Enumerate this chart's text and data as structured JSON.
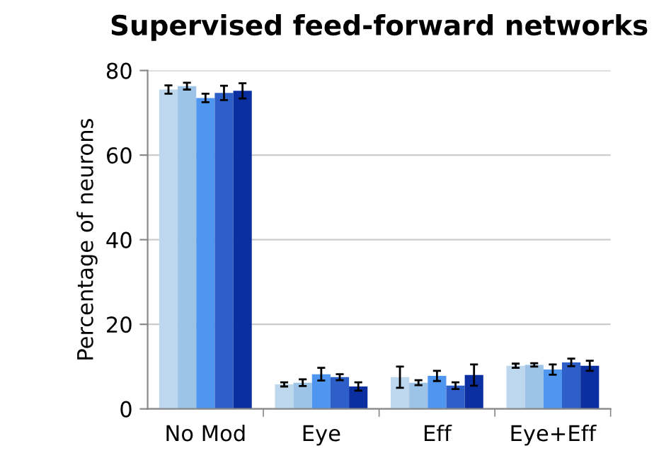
{
  "chart_data": {
    "type": "bar",
    "title": "Supervised feed-forward networks",
    "ylabel": "Percentage of neurons",
    "categories": [
      "No Mod",
      "Eye",
      "Eff",
      "Eye+Eff"
    ],
    "series": [
      {
        "color": "#bdd7ee",
        "values": [
          75.5,
          5.8,
          7.5,
          10.2
        ],
        "errors": [
          1,
          0.5,
          2.5,
          0.5
        ]
      },
      {
        "color": "#9dc3e6",
        "values": [
          76.3,
          6.2,
          6.2,
          10.4
        ],
        "errors": [
          0.8,
          0.8,
          0.6,
          0.4
        ]
      },
      {
        "color": "#4f96f0",
        "values": [
          73.5,
          8.2,
          7.8,
          9.3
        ],
        "errors": [
          1,
          1.5,
          1.2,
          1.2
        ]
      },
      {
        "color": "#2e5fc9",
        "values": [
          74.7,
          7.5,
          5.5,
          11
        ],
        "errors": [
          1.7,
          0.7,
          0.8,
          0.9
        ]
      },
      {
        "color": "#0b2fa0",
        "values": [
          75.2,
          5.3,
          8,
          10.2
        ],
        "errors": [
          1.8,
          1,
          2.5,
          1.2
        ]
      }
    ],
    "ylim": [
      0,
      80
    ],
    "yticks": [
      0,
      20,
      40,
      60,
      80
    ],
    "grid": "y"
  }
}
